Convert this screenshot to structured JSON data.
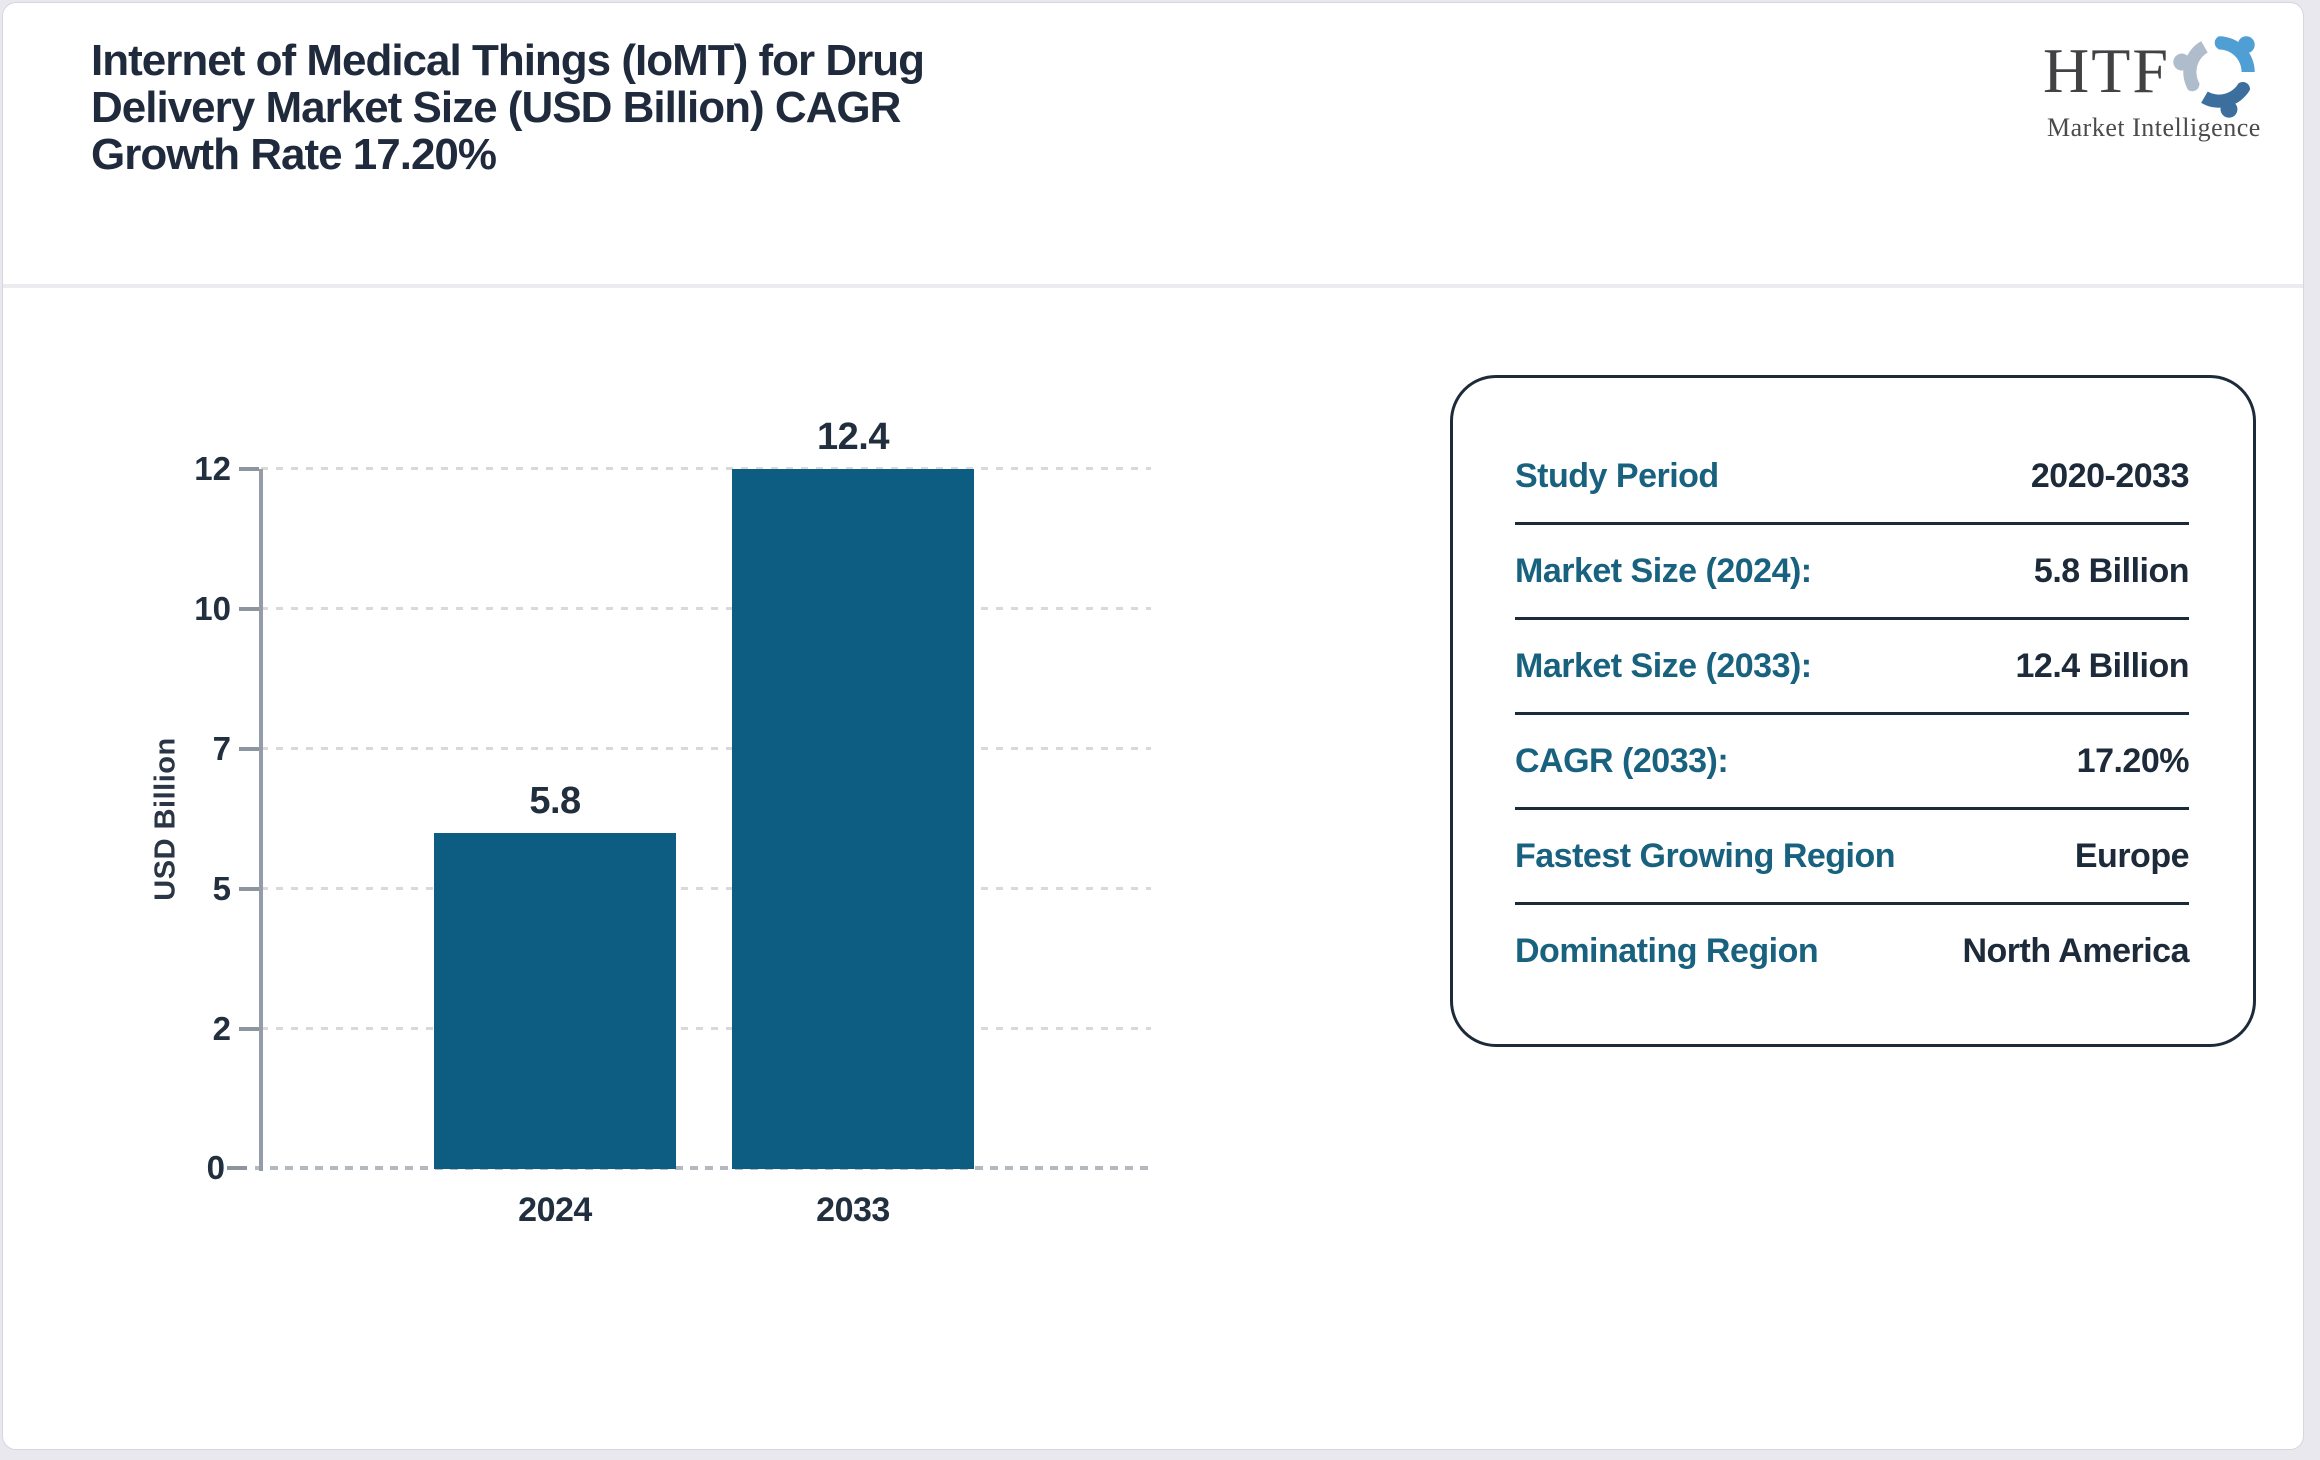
{
  "page": {
    "background": "#e8e8ee",
    "card_border": "#d6d6dc"
  },
  "header": {
    "title_lines": [
      "Internet of Medical Things (IoMT) for Drug",
      "Delivery Market Size (USD Billion) CAGR",
      "Growth Rate 17.20%"
    ],
    "logo": {
      "name": "HTF",
      "tagline": "Market Intelligence",
      "icon": "three-figures-swirl-icon",
      "icon_colors": {
        "light_blue": "#4f9fd4",
        "steel_blue": "#3d6f9e",
        "gray_blue": "#aebccb"
      }
    }
  },
  "chart_data": {
    "type": "bar",
    "title": "Internet of Medical Things (IoMT) for Drug Delivery Market Size (USD Billion) CAGR Growth Rate 17.20%",
    "categories": [
      "2024",
      "2033"
    ],
    "values": [
      5.8,
      12.4
    ],
    "bar_labels": [
      "5.8",
      "12.4"
    ],
    "xlabel": "",
    "ylabel": "USD Billion",
    "yticks": [
      0,
      2,
      5,
      7,
      10,
      12
    ],
    "ylim": [
      0,
      12
    ],
    "grid": "horizontal dashed",
    "legend": "none",
    "bar_color": "#0d5c81",
    "layout_note": "y ticks evenly pixel-spaced despite non-uniform values; 12.4 bar tops at the 12 gridline"
  },
  "panel": {
    "border_color": "#1d2a39",
    "label_color": "#19627f",
    "value_color": "#1d2a39",
    "rows": [
      {
        "label": "Study Period",
        "value": "2020-2033"
      },
      {
        "label": "Market Size (2024):",
        "value": "5.8 Billion"
      },
      {
        "label": "Market Size (2033):",
        "value": "12.4 Billion"
      },
      {
        "label": "CAGR (2033):",
        "value": "17.20%"
      },
      {
        "label": "Fastest Growing Region",
        "value": "Europe"
      },
      {
        "label": "Dominating Region",
        "value": "North America"
      }
    ]
  }
}
